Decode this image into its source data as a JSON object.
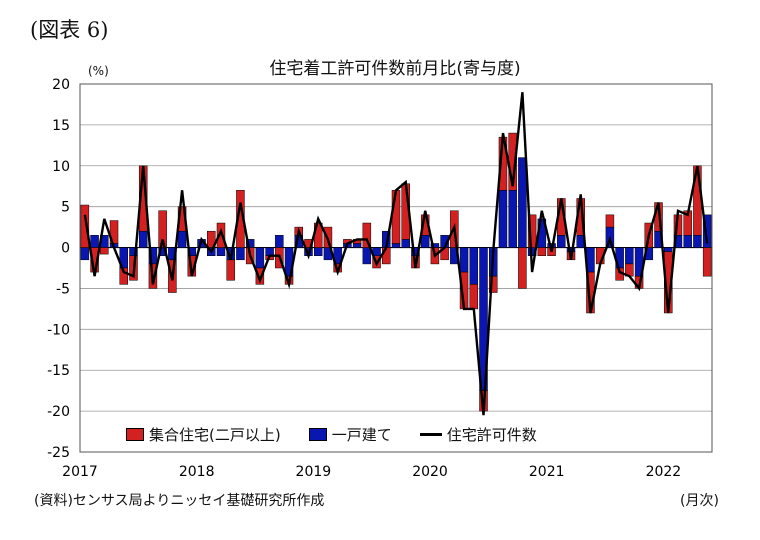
{
  "figure_label": "(図表 6)",
  "source_note": "(資料)センサス局よりニッセイ基礎研究所作成",
  "colors": {
    "multi": "#d32020",
    "single": "#0a16b0",
    "total": "#000000"
  },
  "chart_data": {
    "type": "bar",
    "title": "住宅着工許可件数前月比(寄与度)",
    "ylabel": "(%)",
    "xlabel": "(月次)",
    "ylim": [
      -25,
      20
    ],
    "yticks": [
      20,
      15,
      10,
      5,
      0,
      -5,
      -10,
      -15,
      -20,
      -25
    ],
    "xticks": [
      "2017",
      "2018",
      "2019",
      "2020",
      "2021",
      "2022"
    ],
    "legend": [
      "集合住宅(二戸以上)",
      "一戸建て",
      "住宅許可件数"
    ],
    "start": "2017-01",
    "series": [
      {
        "name": "集合住宅(二戸以上)",
        "type": "bar",
        "values": [
          5.2,
          -3.0,
          -0.8,
          2.8,
          -2.0,
          -3.0,
          8.0,
          -3.0,
          4.5,
          -4.0,
          3.0,
          -2.5,
          0.0,
          2.0,
          3.0,
          -2.5,
          7.0,
          -2.0,
          -2.0,
          -0.5,
          -2.5,
          -1.0,
          1.0,
          1.0,
          3.0,
          2.5,
          -1.0,
          0.5,
          0.5,
          3.0,
          -1.5,
          -2.0,
          6.5,
          6.8,
          -1.5,
          2.5,
          -2.0,
          -1.5,
          4.5,
          -4.5,
          -3.0,
          -2.5,
          -2.0,
          6.5,
          7.0,
          -5.0,
          4.0,
          -1.0,
          -1.0,
          4.5,
          -1.0,
          4.5,
          -5.0,
          -2.0,
          1.5,
          -1.5,
          -1.5,
          -1.5,
          3.0,
          3.5,
          -7.5,
          2.5,
          3.0,
          8.5,
          -3.5
        ]
      },
      {
        "name": "一戸建て",
        "type": "bar",
        "values": [
          -1.5,
          1.5,
          1.5,
          0.5,
          -2.5,
          -1.0,
          2.0,
          -2.0,
          -1.0,
          -1.5,
          2.0,
          -1.0,
          1.0,
          -1.0,
          -1.0,
          -1.5,
          -1.5,
          1.0,
          -2.5,
          -1.0,
          1.5,
          -3.5,
          1.5,
          -1.0,
          -1.0,
          -1.5,
          -2.0,
          0.5,
          0.5,
          -2.0,
          -1.0,
          2.0,
          0.5,
          1.0,
          -1.0,
          1.5,
          0.5,
          1.5,
          -2.0,
          -3.0,
          -4.5,
          -17.5,
          -3.5,
          7.0,
          7.0,
          11.0,
          -1.0,
          3.5,
          0.5,
          1.5,
          -0.5,
          1.5,
          -3.0,
          0.0,
          2.5,
          -2.5,
          -2.0,
          -3.5,
          -1.5,
          2.0,
          -0.5,
          1.5,
          1.5,
          1.5,
          4.0
        ]
      },
      {
        "name": "住宅許可件数",
        "type": "line",
        "values": [
          4.0,
          -3.5,
          3.5,
          0.0,
          -3.0,
          -3.5,
          10.0,
          -4.5,
          1.0,
          -4.0,
          7.0,
          -3.5,
          1.0,
          -0.5,
          2.0,
          -1.5,
          5.5,
          -1.0,
          -4.0,
          -1.0,
          -1.0,
          -4.5,
          2.0,
          -1.0,
          3.5,
          1.0,
          -3.0,
          0.5,
          1.0,
          1.0,
          -2.0,
          0.0,
          7.0,
          8.0,
          -2.5,
          4.5,
          -1.0,
          0.0,
          2.5,
          -7.5,
          -7.5,
          -20.5,
          -0.5,
          14.0,
          7.5,
          19.0,
          -3.0,
          4.5,
          -0.5,
          6.0,
          -1.5,
          6.5,
          -8.0,
          -2.0,
          1.0,
          -3.0,
          -3.5,
          -5.0,
          1.5,
          5.5,
          -8.0,
          4.5,
          4.0,
          10.0,
          0.5
        ]
      }
    ]
  }
}
